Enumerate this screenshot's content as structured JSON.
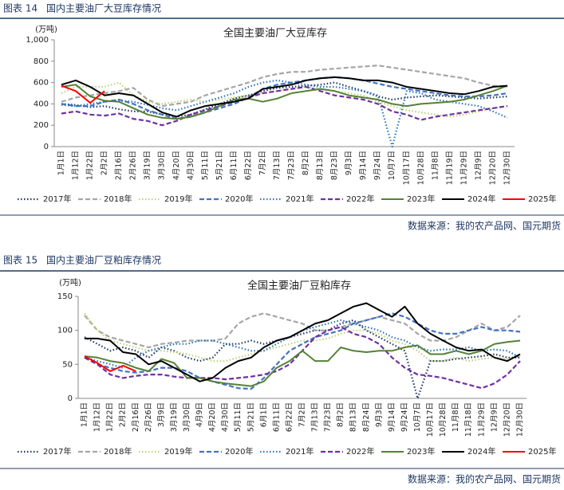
{
  "figures": [
    {
      "label": "图表 14",
      "caption": "国内主要油厂大豆库存情况",
      "source": "数据来源：我的农产品网、国元期货"
    },
    {
      "label": "图表 15",
      "caption": "国内主要油厂豆粕库存情况",
      "source": "数据来源：我的农产品网、国元期货"
    }
  ],
  "chart_data": [
    {
      "type": "line",
      "title": "全国主要油厂大豆库存",
      "y_label": "(万吨)",
      "grid": false,
      "categories": [
        "1月1日",
        "1月12日",
        "1月22日",
        "2月2日",
        "2月16日",
        "2月26日",
        "3月19日",
        "3月30日",
        "4月20日",
        "4月30日",
        "5月11日",
        "5月21日",
        "6月11日",
        "6月22日",
        "7月2日",
        "7月13日",
        "7月23日",
        "8月2日",
        "8月13日",
        "8月23日",
        "9月3日",
        "9月14日",
        "9月24日",
        "10月7日",
        "10月17日",
        "10月28日",
        "11月8日",
        "11月19日",
        "11月29日",
        "12月9日",
        "12月20日",
        "12月30日"
      ],
      "ylim": [
        0,
        1000
      ],
      "yticks": [
        0,
        200,
        400,
        600,
        800,
        {
          "value": 1000,
          "label": "1,000"
        }
      ],
      "series": [
        {
          "name": "2017年",
          "color": "#1f3864",
          "dash": "dotted",
          "values": [
            400,
            390,
            370,
            380,
            350,
            330,
            330,
            300,
            280,
            300,
            350,
            400,
            450,
            480,
            520,
            550,
            560,
            570,
            580,
            600,
            560,
            520,
            470,
            440,
            460,
            470,
            480,
            470,
            460,
            450,
            460,
            470
          ]
        },
        {
          "name": "2018年",
          "color": "#a6a6a6",
          "dash": "dashed",
          "values": [
            420,
            460,
            480,
            500,
            520,
            550,
            440,
            380,
            400,
            420,
            480,
            520,
            560,
            600,
            650,
            680,
            700,
            700,
            720,
            730,
            740,
            750,
            760,
            740,
            720,
            700,
            680,
            660,
            640,
            600,
            570,
            560
          ]
        },
        {
          "name": "2019年",
          "color": "#c3d27a",
          "dash": "dotted",
          "values": [
            500,
            560,
            560,
            560,
            600,
            480,
            420,
            400,
            420,
            440,
            420,
            440,
            460,
            480,
            500,
            520,
            540,
            560,
            540,
            520,
            500,
            480,
            420,
            380,
            340,
            320,
            300,
            280,
            300,
            330,
            360,
            380
          ]
        },
        {
          "name": "2020年",
          "color": "#4472c4",
          "dash": "dashed",
          "values": [
            400,
            380,
            380,
            420,
            440,
            400,
            340,
            300,
            260,
            280,
            320,
            360,
            400,
            460,
            540,
            580,
            600,
            620,
            640,
            650,
            640,
            620,
            590,
            560,
            540,
            520,
            500,
            480,
            470,
            470,
            480,
            500
          ]
        },
        {
          "name": "2021年",
          "color": "#2e75b6",
          "dash": "dotted",
          "values": [
            390,
            380,
            400,
            420,
            430,
            420,
            390,
            360,
            340,
            380,
            420,
            460,
            500,
            560,
            600,
            620,
            600,
            580,
            560,
            560,
            540,
            520,
            480,
            0,
            520,
            500,
            440,
            420,
            400,
            380,
            330,
            270
          ]
        },
        {
          "name": "2022年",
          "color": "#7030a0",
          "dash": "dashed",
          "values": [
            310,
            330,
            300,
            290,
            310,
            260,
            240,
            200,
            240,
            300,
            340,
            380,
            420,
            460,
            500,
            520,
            540,
            560,
            520,
            480,
            460,
            440,
            400,
            330,
            300,
            250,
            280,
            300,
            320,
            340,
            360,
            380
          ]
        },
        {
          "name": "2023年",
          "color": "#548235",
          "dash": "solid",
          "values": [
            560,
            580,
            470,
            430,
            420,
            360,
            300,
            270,
            260,
            280,
            320,
            380,
            440,
            450,
            420,
            450,
            500,
            520,
            540,
            520,
            480,
            460,
            440,
            400,
            380,
            400,
            410,
            420,
            440,
            480,
            520,
            570
          ]
        },
        {
          "name": "2024年",
          "color": "#000000",
          "dash": "solid",
          "values": [
            580,
            620,
            560,
            480,
            500,
            480,
            400,
            320,
            280,
            340,
            380,
            400,
            420,
            450,
            540,
            560,
            580,
            620,
            640,
            650,
            640,
            620,
            620,
            600,
            560,
            540,
            520,
            500,
            490,
            520,
            560,
            570
          ]
        },
        {
          "name": "2025年",
          "color": "#ff0000",
          "dash": "solid",
          "values": [
            570,
            520,
            410,
            520,
            null,
            null,
            null,
            null,
            null,
            null,
            null,
            null,
            null,
            null,
            null,
            null,
            null,
            null,
            null,
            null,
            null,
            null,
            null,
            null,
            null,
            null,
            null,
            null,
            null,
            null,
            null,
            null
          ]
        }
      ]
    },
    {
      "type": "line",
      "title": "全国主要油厂豆粕库存",
      "y_label": "(万吨)",
      "grid": false,
      "categories": [
        "1月1日",
        "1月12日",
        "1月22日",
        "2月2日",
        "2月16日",
        "2月26日",
        "3月9日",
        "3月19日",
        "3月30日",
        "4月9日",
        "4月20日",
        "4月30日",
        "5月11日",
        "5月21日",
        "6月1日",
        "6月11日",
        "6月22日",
        "7月2日",
        "7月13日",
        "7月23日",
        "8月2日",
        "8月13日",
        "8月24日",
        "9月3日",
        "9月14日",
        "9月24日",
        "10月7日",
        "10月17日",
        "10月28日",
        "11月8日",
        "11月18日",
        "11月29日",
        "12月9日",
        "12月20日",
        "12月30日"
      ],
      "ylim": [
        0,
        150
      ],
      "yticks": [
        0,
        50,
        100,
        150
      ],
      "series": [
        {
          "name": "2017年",
          "color": "#1f3864",
          "dash": "dotted",
          "values": [
            90,
            80,
            70,
            75,
            70,
            60,
            75,
            70,
            60,
            55,
            60,
            80,
            80,
            85,
            80,
            85,
            90,
            95,
            100,
            100,
            110,
            115,
            100,
            90,
            80,
            70,
            0,
            55,
            55,
            58,
            60,
            62,
            65,
            60,
            60
          ]
        },
        {
          "name": "2018年",
          "color": "#a6a6a6",
          "dash": "dashed",
          "values": [
            122,
            100,
            90,
            85,
            80,
            75,
            80,
            82,
            85,
            85,
            85,
            88,
            110,
            120,
            125,
            120,
            115,
            110,
            100,
            100,
            105,
            110,
            115,
            120,
            115,
            110,
            95,
            85,
            85,
            90,
            100,
            110,
            100,
            105,
            122
          ]
        },
        {
          "name": "2019年",
          "color": "#c3d27a",
          "dash": "dotted",
          "values": [
            125,
            100,
            85,
            80,
            75,
            70,
            70,
            68,
            65,
            60,
            55,
            55,
            60,
            65,
            70,
            75,
            80,
            85,
            85,
            88,
            95,
            100,
            100,
            95,
            85,
            80,
            70,
            55,
            55,
            60,
            55,
            58,
            60,
            58,
            62
          ]
        },
        {
          "name": "2020年",
          "color": "#4472c4",
          "dash": "dashed",
          "values": [
            60,
            50,
            45,
            40,
            38,
            40,
            45,
            45,
            40,
            30,
            25,
            20,
            15,
            14,
            30,
            50,
            70,
            80,
            90,
            95,
            100,
            110,
            115,
            120,
            125,
            120,
            110,
            100,
            95,
            95,
            100,
            105,
            100,
            100,
            98
          ]
        },
        {
          "name": "2021年",
          "color": "#2e75b6",
          "dash": "dotted",
          "values": [
            60,
            55,
            50,
            45,
            60,
            70,
            75,
            80,
            80,
            85,
            85,
            80,
            75,
            70,
            70,
            80,
            90,
            100,
            105,
            110,
            115,
            110,
            105,
            100,
            90,
            85,
            75,
            70,
            72,
            72,
            75,
            70,
            72,
            70,
            60
          ]
        },
        {
          "name": "2022年",
          "color": "#7030a0",
          "dash": "dashed",
          "values": [
            60,
            50,
            35,
            30,
            33,
            35,
            35,
            32,
            30,
            30,
            30,
            28,
            30,
            32,
            35,
            40,
            50,
            70,
            90,
            100,
            105,
            95,
            90,
            80,
            60,
            45,
            35,
            33,
            30,
            25,
            20,
            15,
            22,
            35,
            55
          ]
        },
        {
          "name": "2023年",
          "color": "#548235",
          "dash": "solid",
          "values": [
            62,
            60,
            55,
            52,
            45,
            40,
            58,
            52,
            30,
            30,
            25,
            22,
            20,
            18,
            25,
            45,
            55,
            70,
            55,
            55,
            75,
            70,
            68,
            70,
            70,
            75,
            78,
            65,
            65,
            70,
            65,
            70,
            80,
            83,
            85
          ]
        },
        {
          "name": "2024年",
          "color": "#000000",
          "dash": "solid",
          "values": [
            88,
            88,
            85,
            68,
            65,
            50,
            55,
            45,
            35,
            25,
            30,
            45,
            55,
            60,
            75,
            85,
            90,
            100,
            110,
            115,
            125,
            135,
            140,
            130,
            120,
            135,
            110,
            95,
            85,
            75,
            70,
            72,
            60,
            55,
            65
          ]
        },
        {
          "name": "2025年",
          "color": "#ff0000",
          "dash": "solid",
          "values": [
            62,
            52,
            40,
            48,
            40,
            null,
            null,
            null,
            null,
            null,
            null,
            null,
            null,
            null,
            null,
            null,
            null,
            null,
            null,
            null,
            null,
            null,
            null,
            null,
            null,
            null,
            null,
            null,
            null,
            null,
            null,
            null,
            null,
            null,
            null
          ]
        }
      ]
    }
  ]
}
